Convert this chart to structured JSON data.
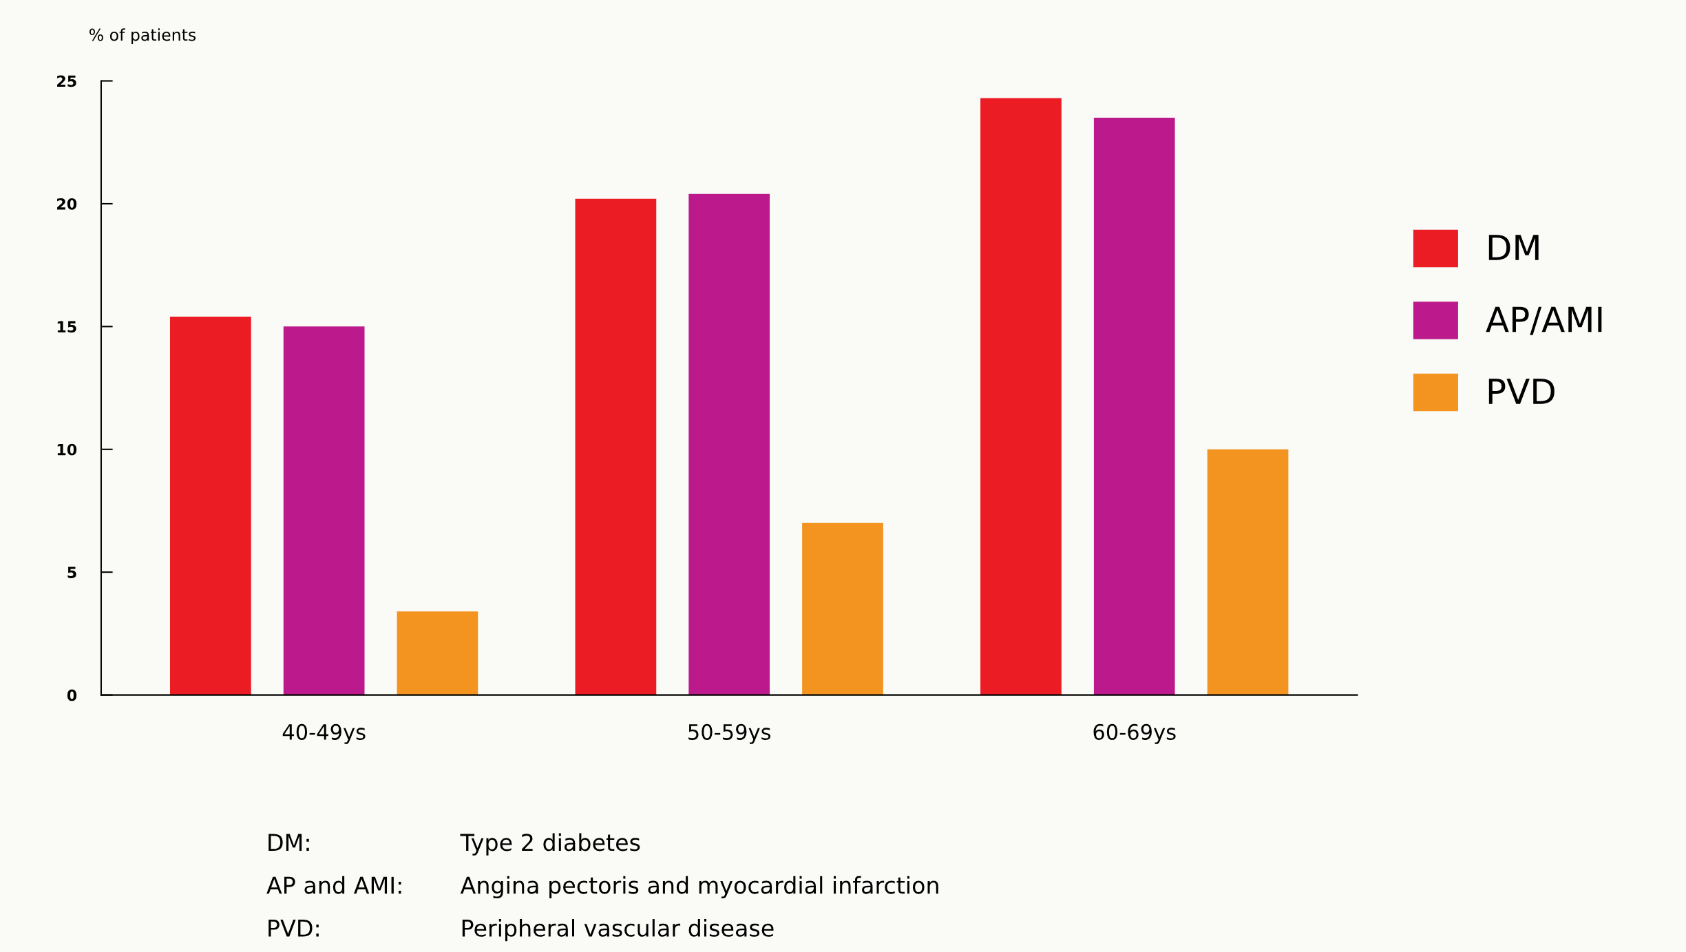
{
  "chart_data": {
    "type": "bar",
    "ylabel": "% of patients",
    "categories": [
      "40-49ys",
      "50-59ys",
      "60-69ys"
    ],
    "series": [
      {
        "name": "DM",
        "color": "#ec1c24",
        "values": [
          15.4,
          20.2,
          24.3
        ]
      },
      {
        "name": "AP/AMI",
        "color": "#bc1a8c",
        "values": [
          15.0,
          20.4,
          23.5
        ]
      },
      {
        "name": "PVD",
        "color": "#f39320",
        "values": [
          3.4,
          7.0,
          10.0
        ]
      }
    ],
    "ylim": [
      0,
      25
    ],
    "yticks": [
      0,
      5,
      10,
      15,
      20,
      25
    ],
    "grid": false,
    "legend": "right",
    "annotations": [
      "DM:",
      "Type 2 diabetes",
      "AP and AMI:",
      "Angina pectoris and myocardial infarction",
      "PVD:",
      "Peripheral vascular disease"
    ]
  }
}
